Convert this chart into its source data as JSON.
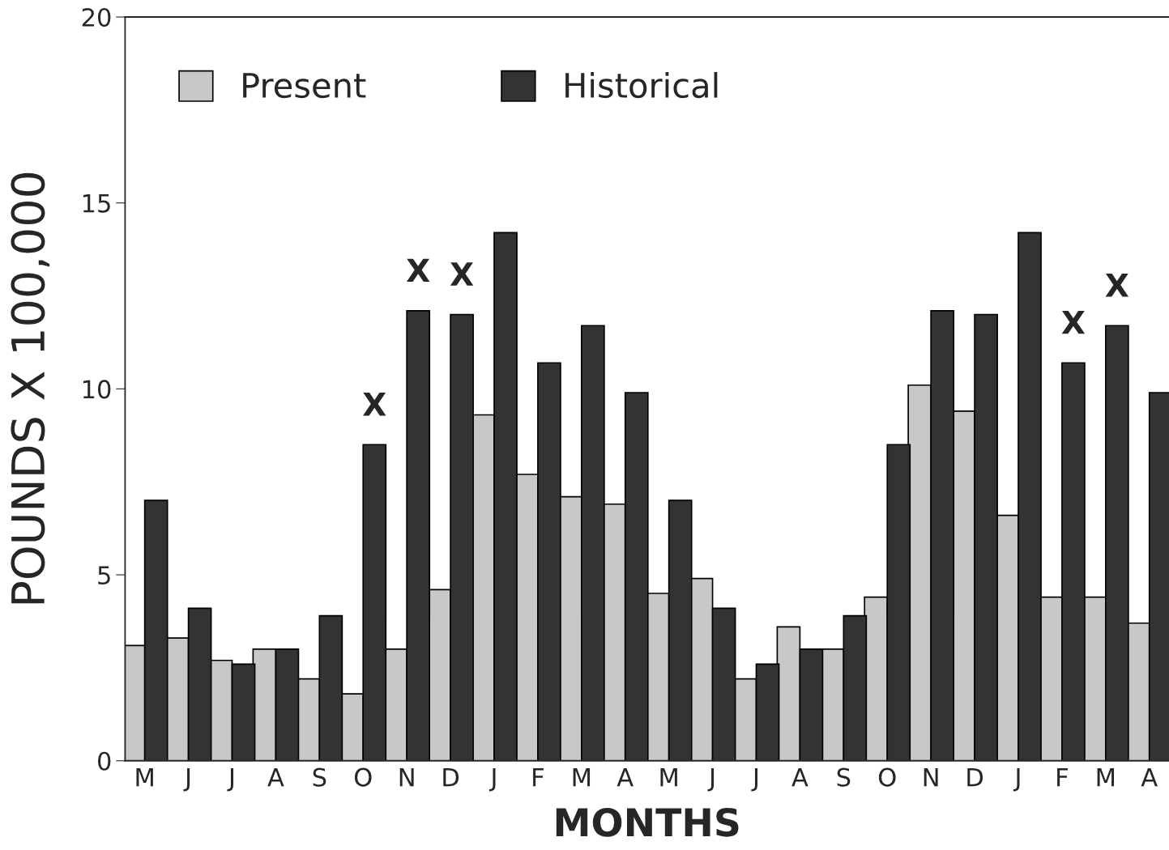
{
  "chart_data": {
    "type": "bar",
    "xlabel": "MONTHS",
    "ylabel": "POUNDS X 100,000",
    "categories": [
      "M",
      "J",
      "J",
      "A",
      "S",
      "O",
      "N",
      "D",
      "J",
      "F",
      "M",
      "A",
      "M",
      "J",
      "J",
      "A",
      "S",
      "O",
      "N",
      "D",
      "J",
      "F",
      "M",
      "A"
    ],
    "series": [
      {
        "name": "Present",
        "color": "#c8c8c8",
        "values": [
          3.1,
          3.3,
          2.7,
          3.0,
          2.2,
          1.8,
          3.0,
          4.6,
          9.3,
          7.7,
          7.1,
          6.9,
          4.5,
          4.9,
          2.2,
          3.6,
          3.0,
          4.4,
          10.1,
          9.4,
          6.6,
          4.4,
          4.4,
          3.7
        ]
      },
      {
        "name": "Historical",
        "color": "#333333",
        "values": [
          7.0,
          4.1,
          2.6,
          3.0,
          3.9,
          8.5,
          12.1,
          12.0,
          14.2,
          10.7,
          11.7,
          9.9,
          7.0,
          4.1,
          2.6,
          3.0,
          3.9,
          8.5,
          12.1,
          12.0,
          14.2,
          10.7,
          11.7,
          9.9
        ],
        "value_labels": [
          null,
          null,
          null,
          null,
          null,
          "X",
          "X",
          "X",
          null,
          null,
          null,
          null,
          null,
          null,
          null,
          null,
          null,
          null,
          null,
          null,
          null,
          "X",
          "X",
          null
        ]
      }
    ],
    "ylim": [
      0,
      20
    ],
    "yticks": [
      0,
      5,
      10,
      15,
      20
    ],
    "grid": false,
    "legend": "top left"
  }
}
